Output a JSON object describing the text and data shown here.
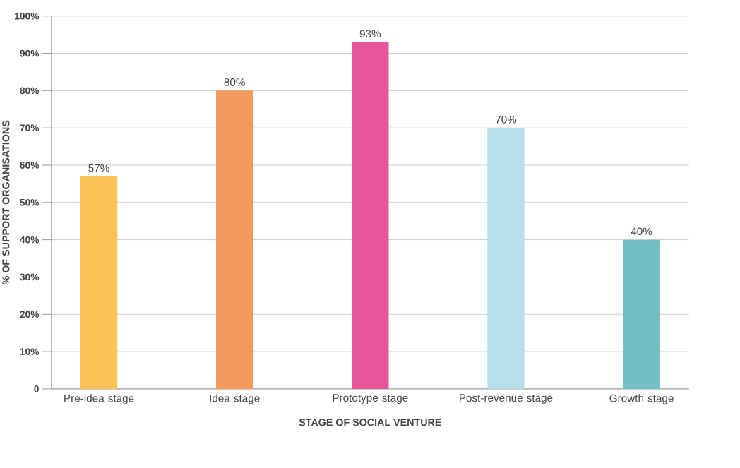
{
  "chart_data": {
    "type": "bar",
    "xlabel": "STAGE OF SOCIAL VENTURE",
    "ylabel": "% OF SUPPORT ORGANISATIONS",
    "categories": [
      "Pre-idea stage",
      "Idea stage",
      "Prototype stage",
      "Post-revenue stage",
      "Growth stage"
    ],
    "values": [
      57,
      80,
      93,
      70,
      40
    ],
    "value_labels": [
      "57%",
      "80%",
      "93%",
      "70%",
      "40%"
    ],
    "colors": [
      "#f9c256",
      "#f39a5e",
      "#e9559a",
      "#b7dfe9",
      "#72bfc4"
    ],
    "ylim": [
      0,
      100
    ],
    "yticks": [
      {
        "value": 0,
        "label": "0"
      },
      {
        "value": 10,
        "label": "10%"
      },
      {
        "value": 20,
        "label": "20%"
      },
      {
        "value": 30,
        "label": "30%"
      },
      {
        "value": 40,
        "label": "40%"
      },
      {
        "value": 50,
        "label": "50%"
      },
      {
        "value": 60,
        "label": "60%"
      },
      {
        "value": 70,
        "label": "70%"
      },
      {
        "value": 80,
        "label": "80%"
      },
      {
        "value": 90,
        "label": "90%"
      },
      {
        "value": 100,
        "label": "100%"
      }
    ],
    "grid": "y"
  }
}
